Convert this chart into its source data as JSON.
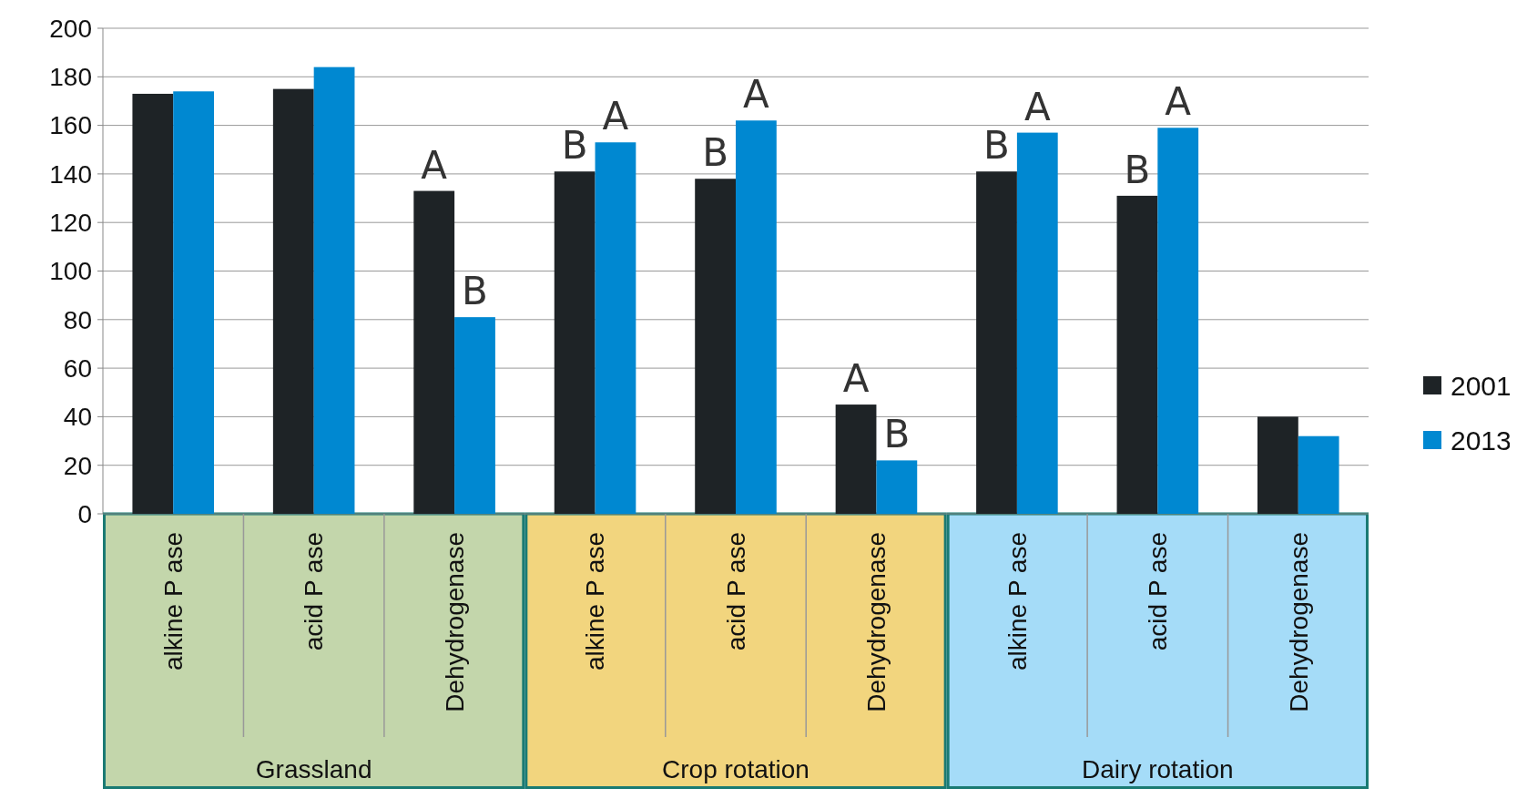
{
  "chart_data": {
    "type": "bar",
    "categories": [
      "alkine P ase",
      "acid P ase",
      "Dehydrogenase",
      "alkine P ase",
      "acid P ase",
      "Dehydrogenase",
      "alkine P ase",
      "acid P ase",
      "Dehydrogenase"
    ],
    "series": [
      {
        "name": "2001",
        "color": "#1e2326",
        "values": [
          173,
          175,
          133,
          141,
          138,
          45,
          141,
          131,
          40
        ],
        "value_labels": [
          null,
          null,
          "A",
          "B",
          "B",
          "A",
          "B",
          "B",
          null
        ]
      },
      {
        "name": "2013",
        "color": "#0088d1",
        "values": [
          174,
          184,
          81,
          153,
          162,
          22,
          157,
          159,
          32
        ],
        "value_labels": [
          null,
          null,
          "B",
          "A",
          "A",
          "B",
          "A",
          "A",
          null
        ]
      }
    ],
    "ylim": [
      0,
      200
    ],
    "yticks": [
      0,
      20,
      40,
      60,
      80,
      100,
      120,
      140,
      160,
      180,
      200
    ],
    "grid": "y",
    "legend": "right",
    "annotations": [
      "Grassland",
      "Crop rotation",
      "Dairy rotation"
    ]
  }
}
